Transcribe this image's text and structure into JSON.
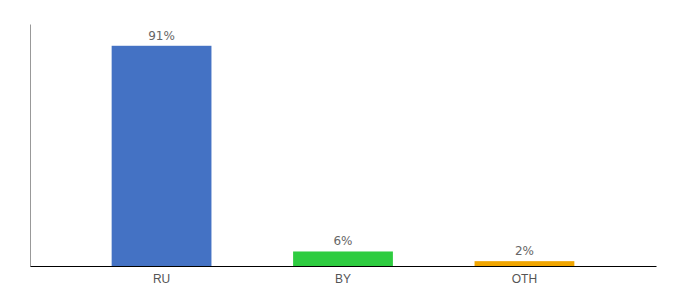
{
  "chart_data": {
    "type": "bar",
    "categories": [
      "RU",
      "BY",
      "OTH"
    ],
    "values": [
      91,
      6,
      2
    ],
    "value_labels": [
      "91%",
      "6%",
      "2%"
    ],
    "data_labels": true,
    "colors": [
      "#4472c4",
      "#2ecc40",
      "#f0a500"
    ],
    "ylim": [
      0,
      100
    ],
    "grid": false,
    "tick_labels": "x"
  }
}
